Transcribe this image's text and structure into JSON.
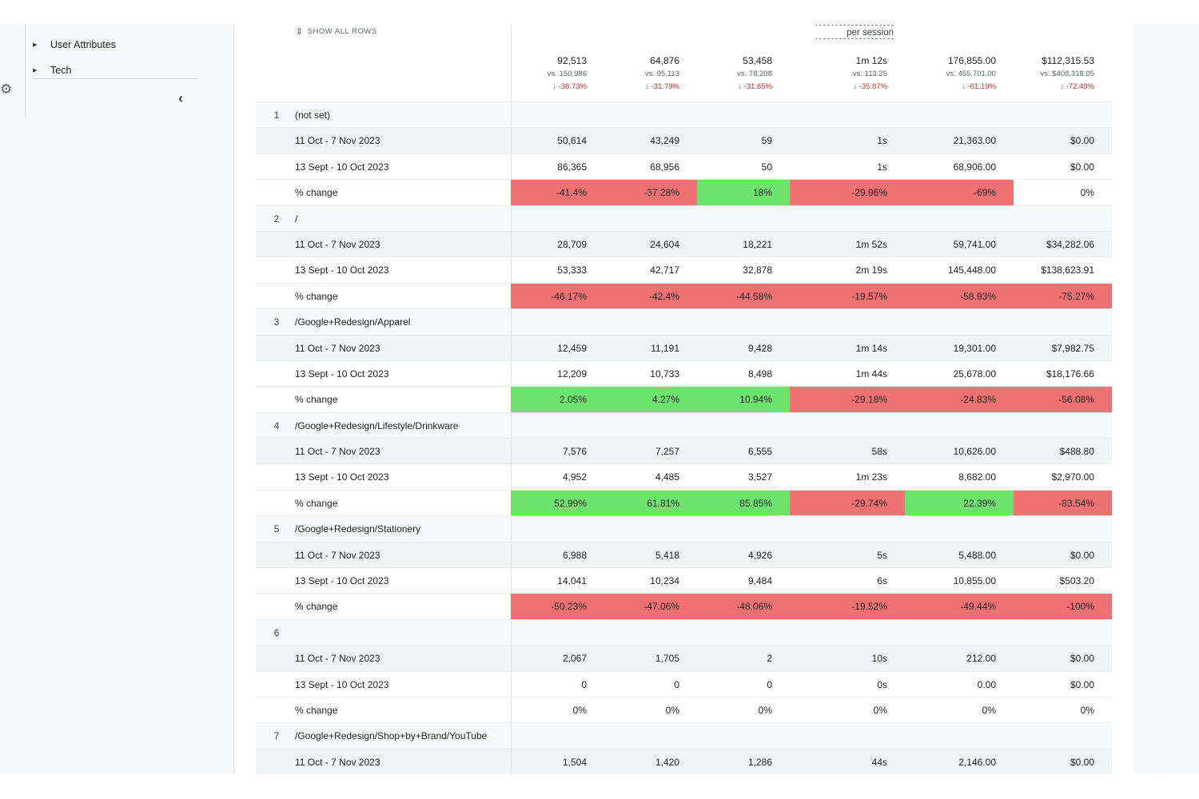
{
  "sidebar": {
    "items": [
      {
        "label": "User Attributes"
      },
      {
        "label": "Tech"
      }
    ]
  },
  "toolbar": {
    "show_all_label": "SHOW ALL ROWS",
    "per_session_label": "per session"
  },
  "totals": [
    {
      "value": "92,513",
      "compare": "vs. 150,986",
      "change": "↓ -38.73%"
    },
    {
      "value": "64,876",
      "compare": "vs. 95,113",
      "change": "↓ -31.79%"
    },
    {
      "value": "53,458",
      "compare": "vs. 78,208",
      "change": "↓ -31.65%"
    },
    {
      "value": "1m 12s",
      "compare": "vs. 113.25",
      "change": "↓ -35.87%"
    },
    {
      "value": "176,855.00",
      "compare": "vs. 455,701.00",
      "change": "↓ -61.19%"
    },
    {
      "value": "$112,315.53",
      "compare": "vs. $408,318.05",
      "change": "↓ -72.49%"
    }
  ],
  "groups": [
    {
      "index": "1",
      "label": "(not set)",
      "rows": [
        {
          "label": "11 Oct - 7 Nov 2023",
          "values": [
            "50,614",
            "43,249",
            "59",
            "1s",
            "21,363.00",
            "$0.00"
          ]
        },
        {
          "label": "13 Sept - 10 Oct 2023",
          "values": [
            "86,365",
            "68,956",
            "50",
            "1s",
            "68,906.00",
            "$0.00"
          ]
        }
      ],
      "change": {
        "label": "% change",
        "values": [
          "-41.4%",
          "-37.28%",
          "18%",
          "-29.96%",
          "-69%",
          "0%"
        ],
        "status": [
          "red",
          "red",
          "green",
          "red",
          "red",
          "none"
        ]
      }
    },
    {
      "index": "2",
      "label": "/",
      "rows": [
        {
          "label": "11 Oct - 7 Nov 2023",
          "values": [
            "28,709",
            "24,604",
            "18,221",
            "1m 52s",
            "59,741.00",
            "$34,282.06"
          ]
        },
        {
          "label": "13 Sept - 10 Oct 2023",
          "values": [
            "53,333",
            "42,717",
            "32,878",
            "2m 19s",
            "145,448.00",
            "$138,623.91"
          ]
        }
      ],
      "change": {
        "label": "% change",
        "values": [
          "-46.17%",
          "-42.4%",
          "-44.58%",
          "-19.57%",
          "-58.93%",
          "-75.27%"
        ],
        "status": [
          "red",
          "red",
          "red",
          "red",
          "red",
          "red"
        ]
      }
    },
    {
      "index": "3",
      "label": "/Google+Redesign/Apparel",
      "rows": [
        {
          "label": "11 Oct - 7 Nov 2023",
          "values": [
            "12,459",
            "11,191",
            "9,428",
            "1m 14s",
            "19,301.00",
            "$7,982.75"
          ]
        },
        {
          "label": "13 Sept - 10 Oct 2023",
          "values": [
            "12,209",
            "10,733",
            "8,498",
            "1m 44s",
            "25,678.00",
            "$18,176.66"
          ]
        }
      ],
      "change": {
        "label": "% change",
        "values": [
          "2.05%",
          "4.27%",
          "10.94%",
          "-29.18%",
          "-24.83%",
          "-56.08%"
        ],
        "status": [
          "green",
          "green",
          "green",
          "red",
          "red",
          "red"
        ]
      }
    },
    {
      "index": "4",
      "label": "/Google+Redesign/Lifestyle/Drinkware",
      "rows": [
        {
          "label": "11 Oct - 7 Nov 2023",
          "values": [
            "7,576",
            "7,257",
            "6,555",
            "58s",
            "10,626.00",
            "$488.80"
          ]
        },
        {
          "label": "13 Sept - 10 Oct 2023",
          "values": [
            "4,952",
            "4,485",
            "3,527",
            "1m 23s",
            "8,682.00",
            "$2,970.00"
          ]
        }
      ],
      "change": {
        "label": "% change",
        "values": [
          "52.99%",
          "61.81%",
          "85.85%",
          "-29.74%",
          "22.39%",
          "-83.54%"
        ],
        "status": [
          "green",
          "green",
          "green",
          "red",
          "green",
          "red"
        ]
      }
    },
    {
      "index": "5",
      "label": "/Google+Redesign/Stationery",
      "rows": [
        {
          "label": "11 Oct - 7 Nov 2023",
          "values": [
            "6,988",
            "5,418",
            "4,926",
            "5s",
            "5,488.00",
            "$0.00"
          ]
        },
        {
          "label": "13 Sept - 10 Oct 2023",
          "values": [
            "14,041",
            "10,234",
            "9,484",
            "6s",
            "10,855.00",
            "$503.20"
          ]
        }
      ],
      "change": {
        "label": "% change",
        "values": [
          "-50.23%",
          "-47.06%",
          "-48.06%",
          "-19.52%",
          "-49.44%",
          "-100%"
        ],
        "status": [
          "red",
          "red",
          "red",
          "red",
          "red",
          "red"
        ]
      }
    },
    {
      "index": "6",
      "label": "",
      "rows": [
        {
          "label": "11 Oct - 7 Nov 2023",
          "values": [
            "2,067",
            "1,705",
            "2",
            "10s",
            "212.00",
            "$0.00"
          ]
        },
        {
          "label": "13 Sept - 10 Oct 2023",
          "values": [
            "0",
            "0",
            "0",
            "0s",
            "0.00",
            "$0.00"
          ]
        }
      ],
      "change": {
        "label": "% change",
        "values": [
          "0%",
          "0%",
          "0%",
          "0%",
          "0%",
          "0%"
        ],
        "status": [
          "none",
          "none",
          "none",
          "none",
          "none",
          "none"
        ]
      }
    },
    {
      "index": "7",
      "label": "/Google+Redesign/Shop+by+Brand/YouTube",
      "rows": [
        {
          "label": "11 Oct - 7 Nov 2023",
          "values": [
            "1,504",
            "1,420",
            "1,286",
            "44s",
            "2,146.00",
            "$0.00"
          ]
        }
      ]
    }
  ],
  "colors": {
    "increase": "#6de26d",
    "decrease": "#f07171"
  }
}
